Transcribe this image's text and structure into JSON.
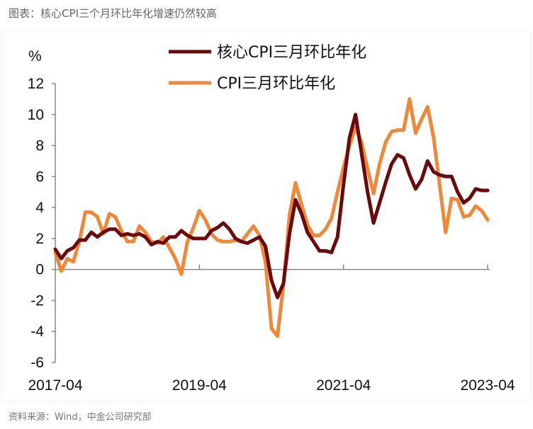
{
  "header": {
    "title": "图表：核心CPI三个月环比年化增速仍然较高"
  },
  "footer": {
    "source": "资料来源：Wind，中金公司研究部"
  },
  "chart_data": {
    "type": "line",
    "ylabel": "%",
    "ylim": [
      -6,
      12
    ],
    "yticks": [
      -6,
      -4,
      -2,
      0,
      2,
      4,
      6,
      8,
      10,
      12
    ],
    "x_start": "2017-04",
    "x_end": "2023-04",
    "xticks": [
      "2017-04",
      "2019-04",
      "2021-04",
      "2023-04"
    ],
    "legend_position": "top",
    "grid": false,
    "series": [
      {
        "name": "核心CPI三月环比年化",
        "color": "#6b0a0a",
        "values": [
          1.3,
          0.7,
          1.2,
          1.4,
          1.9,
          1.9,
          2.4,
          2.1,
          2.4,
          2.6,
          2.6,
          2.2,
          2.3,
          2.2,
          2.3,
          2.1,
          1.6,
          1.8,
          1.7,
          2.1,
          2.1,
          2.5,
          2.2,
          2.0,
          2.0,
          2.0,
          2.5,
          2.7,
          3.0,
          2.6,
          2.0,
          1.8,
          1.7,
          1.9,
          2.1,
          1.5,
          -0.7,
          -1.8,
          -0.9,
          2.3,
          4.5,
          3.6,
          2.4,
          1.8,
          1.2,
          1.2,
          1.1,
          2.1,
          5.5,
          8.5,
          10.0,
          7.5,
          5.0,
          3.0,
          4.3,
          5.6,
          6.8,
          7.4,
          7.2,
          6.1,
          5.2,
          5.8,
          7.0,
          6.3,
          6.1,
          6.0,
          6.0,
          5.0,
          4.3,
          4.6,
          5.2,
          5.1,
          5.1
        ]
      },
      {
        "name": "CPI三月环比年化",
        "color": "#f0883a",
        "values": [
          1.1,
          -0.1,
          0.7,
          0.5,
          1.8,
          3.7,
          3.7,
          3.4,
          2.3,
          3.6,
          3.4,
          2.5,
          1.8,
          1.8,
          2.8,
          2.4,
          1.8,
          1.7,
          2.1,
          1.4,
          0.7,
          -0.3,
          1.8,
          2.7,
          3.8,
          3.2,
          2.3,
          1.9,
          1.8,
          1.8,
          1.9,
          1.8,
          2.3,
          2.8,
          2.2,
          0.5,
          -3.8,
          -4.3,
          -1.0,
          3.5,
          5.6,
          4.2,
          2.9,
          2.2,
          2.2,
          2.6,
          3.3,
          5.0,
          6.6,
          8.0,
          9.2,
          8.2,
          6.5,
          4.9,
          6.8,
          8.2,
          8.9,
          9.0,
          9.0,
          11.0,
          8.8,
          9.7,
          10.5,
          8.5,
          5.5,
          2.4,
          4.6,
          4.5,
          3.4,
          3.5,
          4.1,
          3.8,
          3.2
        ]
      }
    ]
  }
}
